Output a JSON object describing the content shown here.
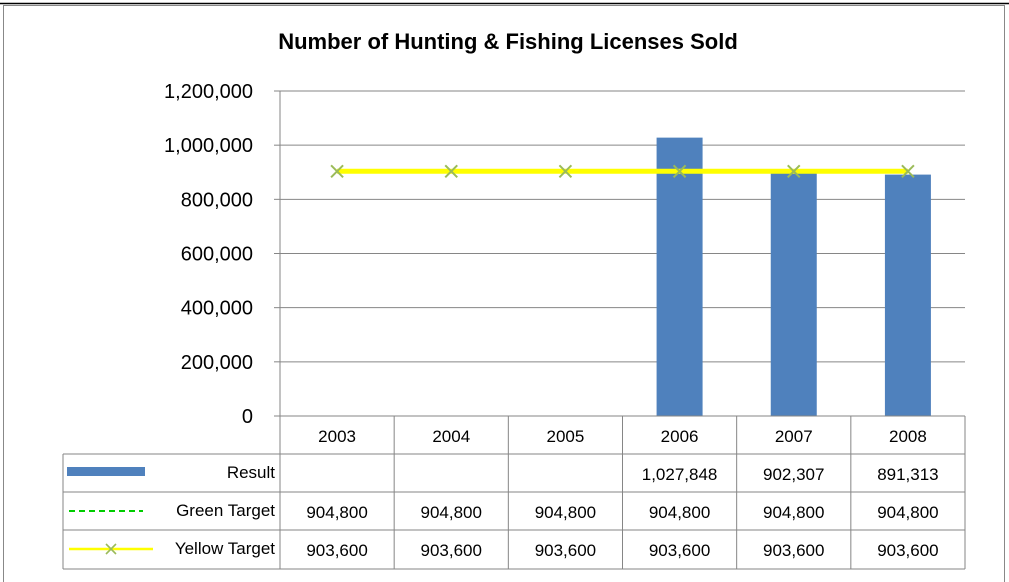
{
  "chart_data": {
    "type": "bar",
    "title": "Number of Hunting & Fishing Licenses Sold",
    "categories": [
      "2003",
      "2004",
      "2005",
      "2006",
      "2007",
      "2008"
    ],
    "ylim": [
      0,
      1200000
    ],
    "yticks": [
      0,
      200000,
      400000,
      600000,
      800000,
      1000000,
      1200000
    ],
    "ytick_labels": [
      "0",
      "200,000",
      "400,000",
      "600,000",
      "800,000",
      "1,000,000",
      "1,200,000"
    ],
    "grid": true,
    "legend_placement": "data-table",
    "series": [
      {
        "name": "Result",
        "kind": "bar",
        "color": "#4F81BD",
        "values": [
          null,
          null,
          null,
          1027848,
          902307,
          891313
        ],
        "labels": [
          "",
          "",
          "",
          "1,027,848",
          "902,307",
          "891,313"
        ]
      },
      {
        "name": "Green Target",
        "kind": "line",
        "style": "dashed",
        "color": "#00CC00",
        "values": [
          904800,
          904800,
          904800,
          904800,
          904800,
          904800
        ],
        "labels": [
          "904,800",
          "904,800",
          "904,800",
          "904,800",
          "904,800",
          "904,800"
        ]
      },
      {
        "name": "Yellow Target",
        "kind": "line",
        "marker": "x",
        "color": "#FFFF00",
        "marker_color": "#9BBB59",
        "values": [
          903600,
          903600,
          903600,
          903600,
          903600,
          903600
        ],
        "labels": [
          "903,600",
          "903,600",
          "903,600",
          "903,600",
          "903,600",
          "903,600"
        ]
      }
    ]
  }
}
